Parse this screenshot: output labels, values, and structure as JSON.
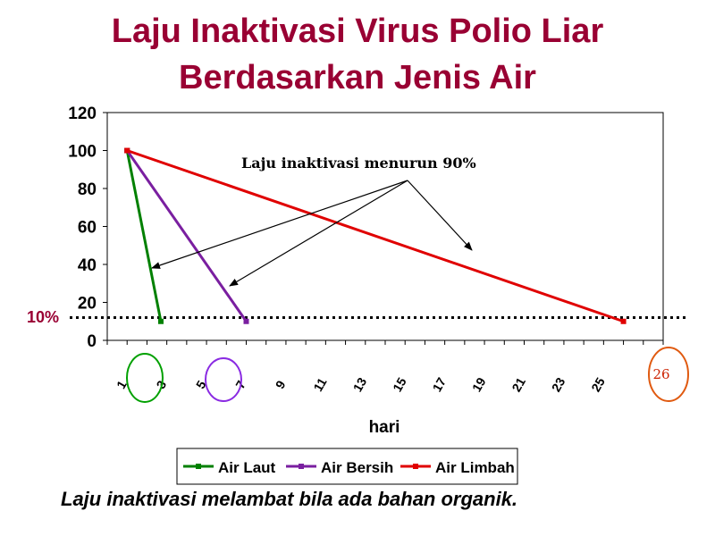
{
  "slide": {
    "title_line1": "Laju Inaktivasi Virus Polio Liar",
    "title_line2": "Berdasarkan Jenis Air",
    "footer": "Laju inaktivasi melambat bila ada bahan organik.",
    "colors": {
      "title": "#990033",
      "laut": "#008000",
      "bersih": "#7a1fa0",
      "limbah": "#e00000",
      "ellipse_laut": "#00a000",
      "ellipse_bersih": "#8a2be2",
      "ellipse_limbah": "#e05a10"
    }
  },
  "chart_data": {
    "type": "line",
    "title": "",
    "xlabel": "hari",
    "ylabel": "",
    "ylim": [
      0,
      120
    ],
    "yticks": [
      "0",
      "20",
      "40",
      "60",
      "80",
      "100",
      "120"
    ],
    "xticks": [
      "1",
      "3",
      "5",
      "7",
      "9",
      "11",
      "13",
      "15",
      "17",
      "19",
      "21",
      "23",
      "25"
    ],
    "xlim": [
      0,
      28
    ],
    "grid": false,
    "legend_position": "bottom",
    "series": [
      {
        "name": "Air Laut",
        "color": "#008000",
        "x": [
          1,
          2.7
        ],
        "y": [
          100,
          10
        ]
      },
      {
        "name": "Air Bersih",
        "color": "#7a1fa0",
        "x": [
          1,
          7
        ],
        "y": [
          100,
          10
        ]
      },
      {
        "name": "Air Limbah",
        "color": "#e00000",
        "x": [
          1,
          26
        ],
        "y": [
          100,
          10
        ]
      }
    ],
    "threshold": {
      "y": 12,
      "label": "10%"
    },
    "annotation": "Laju inaktivasi menurun 90%",
    "end_label": "26"
  }
}
